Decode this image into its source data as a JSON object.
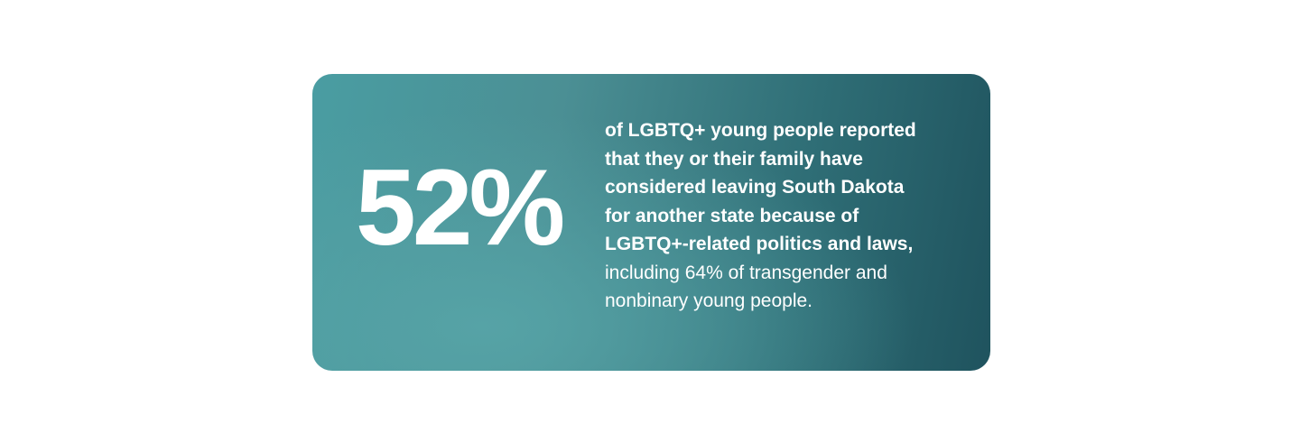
{
  "card": {
    "stat": "52%",
    "bold_lines": [
      "of LGBTQ+ young people reported",
      "that they or their family have",
      "considered leaving South Dakota",
      "for another state because of",
      "LGBTQ+-related politics and laws,"
    ],
    "regular_lines": [
      "including 64% of transgender and",
      "nonbinary young people."
    ]
  }
}
